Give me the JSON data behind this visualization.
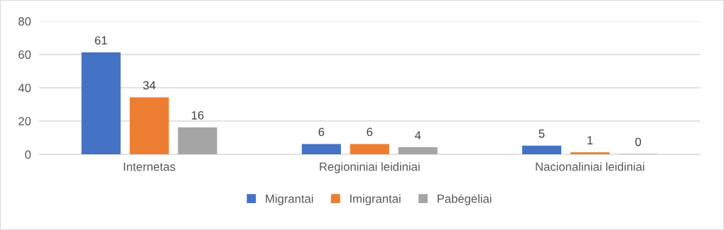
{
  "chart_data": {
    "type": "bar",
    "categories": [
      "Internetas",
      "Regioniniai leidiniai",
      "Nacionaliniai leidiniai"
    ],
    "series": [
      {
        "name": "Migrantai",
        "color": "#4472c4",
        "values": [
          61,
          6,
          5
        ]
      },
      {
        "name": "Imigrantai",
        "color": "#ed7d31",
        "values": [
          34,
          6,
          1
        ]
      },
      {
        "name": "Pabėgėliai",
        "color": "#a5a5a5",
        "values": [
          16,
          4,
          0
        ]
      }
    ],
    "ylim": [
      0,
      80
    ],
    "yticks": [
      0,
      20,
      40,
      60,
      80
    ],
    "grid": "y",
    "legend": "bottom",
    "data_labels": true
  }
}
